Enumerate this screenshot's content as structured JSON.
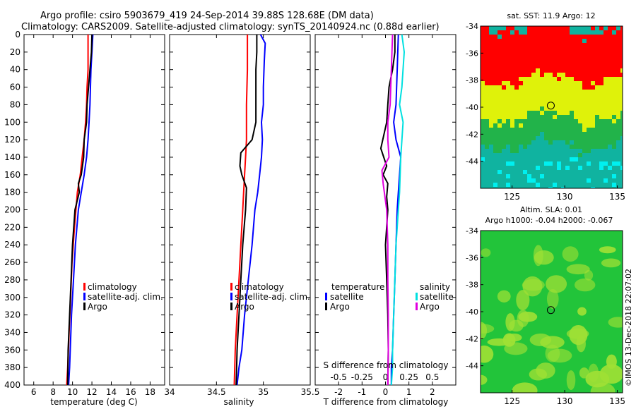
{
  "title": {
    "line1": "Argo profile: csiro 5903679_419 24-Sep-2014 39.88S 128.68E (DM data)",
    "line2": "Climatology: CARS2009. Satellite-adjusted climatology: synTS_20140924.nc (0.88d earlier)"
  },
  "credit": "©IMOS 13-Dec-2018 22:07:02",
  "colors": {
    "climatology": "#ff0000",
    "satellite": "#0000ff",
    "argo": "#000000",
    "t_sat_diff": "#0000ff",
    "s_sat_diff": "#00e0e0",
    "s_argo_diff": "#e000e0",
    "sst_red": "#ff0000",
    "sst_yellow": "#dff20a",
    "sst_green": "#22b34a",
    "sst_teal": "#10b3a0",
    "sst_cyan": "#00f0f0",
    "sla_green": "#22c43a",
    "sla_light": "#9fe035"
  },
  "chart_data": [
    {
      "type": "line",
      "id": "temperature",
      "xlabel": "temperature (deg C)",
      "ylabel": "",
      "xlim": [
        5,
        19.5
      ],
      "ylim": [
        400,
        0
      ],
      "xticks": [
        "6",
        "8",
        "10",
        "12",
        "14",
        "16",
        "18"
      ],
      "xtick_values": [
        6,
        8,
        10,
        12,
        14,
        16,
        18
      ],
      "yticks": [
        "0",
        "20",
        "40",
        "60",
        "80",
        "100",
        "120",
        "140",
        "160",
        "180",
        "200",
        "220",
        "240",
        "260",
        "280",
        "300",
        "320",
        "340",
        "360",
        "380",
        "400"
      ],
      "ytick_values": [
        0,
        20,
        40,
        60,
        80,
        100,
        120,
        140,
        160,
        180,
        200,
        220,
        240,
        260,
        280,
        300,
        320,
        340,
        360,
        380,
        400
      ],
      "legend": [
        "climatology",
        "satellite-adj. clim.",
        "Argo"
      ],
      "series": [
        {
          "name": "climatology",
          "color_key": "climatology",
          "x": [
            11.6,
            11.6,
            11.5,
            11.45,
            11.35,
            11.2,
            11.0,
            10.8,
            10.5,
            10.2,
            9.95,
            9.8,
            9.65,
            9.5,
            9.4
          ],
          "y": [
            0,
            40,
            60,
            80,
            100,
            120,
            140,
            160,
            180,
            220,
            260,
            300,
            340,
            380,
            400
          ]
        },
        {
          "name": "satellite-adj. clim.",
          "color_key": "satellite",
          "x": [
            12.1,
            12.0,
            11.9,
            11.85,
            11.8,
            11.7,
            11.6,
            11.45,
            11.2,
            10.9,
            10.6,
            10.3,
            10.1,
            9.9,
            9.7,
            9.6
          ],
          "y": [
            0,
            20,
            40,
            60,
            80,
            100,
            120,
            140,
            160,
            180,
            200,
            240,
            280,
            320,
            380,
            400
          ]
        },
        {
          "name": "Argo",
          "color_key": "argo",
          "x": [
            12.0,
            11.95,
            11.8,
            11.65,
            11.5,
            11.45,
            11.2,
            11.15,
            10.9,
            10.6,
            10.7,
            10.25,
            10.0,
            9.85,
            9.7,
            9.55,
            9.5
          ],
          "y": [
            0,
            20,
            40,
            60,
            80,
            100,
            120,
            140,
            160,
            170,
            180,
            200,
            240,
            280,
            320,
            360,
            400
          ]
        }
      ]
    },
    {
      "type": "line",
      "id": "salinity",
      "xlabel": "salinity",
      "xlim": [
        34,
        35.5
      ],
      "ylim": [
        400,
        0
      ],
      "xticks": [
        "34",
        "34.5",
        "35",
        "35.5"
      ],
      "xtick_values": [
        34,
        34.5,
        35,
        35.5
      ],
      "legend": [
        "climatology",
        "satellite-adj. clim.",
        "Argo"
      ],
      "series": [
        {
          "name": "climatology",
          "color_key": "climatology",
          "x": [
            34.83,
            34.83,
            34.82,
            34.82,
            34.81,
            34.8,
            34.79,
            34.78,
            34.76,
            34.74,
            34.72,
            34.7,
            34.69
          ],
          "y": [
            0,
            40,
            80,
            120,
            140,
            160,
            180,
            200,
            240,
            280,
            320,
            360,
            400
          ]
        },
        {
          "name": "satellite-adj. clim.",
          "color_key": "satellite",
          "x": [
            34.97,
            35.02,
            35.01,
            35.0,
            35.0,
            34.98,
            34.99,
            34.98,
            34.96,
            34.94,
            34.91,
            34.88,
            34.84,
            34.8,
            34.77,
            34.74,
            34.72
          ],
          "y": [
            0,
            10,
            30,
            60,
            80,
            100,
            120,
            140,
            160,
            180,
            200,
            240,
            280,
            320,
            360,
            380,
            400
          ]
        },
        {
          "name": "Argo",
          "color_key": "argo",
          "x": [
            34.93,
            34.93,
            34.92,
            34.92,
            34.92,
            34.92,
            34.88,
            34.76,
            34.75,
            34.77,
            34.82,
            34.81,
            34.78,
            34.76,
            34.74,
            34.72,
            34.71
          ],
          "y": [
            0,
            20,
            40,
            60,
            80,
            100,
            120,
            135,
            150,
            160,
            175,
            200,
            240,
            280,
            320,
            360,
            400
          ]
        }
      ]
    },
    {
      "type": "line",
      "id": "difference",
      "xlabel": "T difference from climatology",
      "top_xlabel": "S difference from climatology",
      "xlim": [
        -3,
        3
      ],
      "ylim": [
        400,
        0
      ],
      "xticks": [
        "-2",
        "-1",
        "0",
        "1",
        "2"
      ],
      "xtick_values": [
        -2,
        -1,
        0,
        1,
        2
      ],
      "sxticks": [
        "-0.5",
        "-0.25",
        "0",
        "0.25",
        "0.5"
      ],
      "sxtick_values": [
        -2,
        -1,
        0,
        1,
        2
      ],
      "legend_temperature_title": "temperature",
      "legend_salinity_title": "salinity",
      "legend_temperature": [
        "satellite",
        "Argo"
      ],
      "legend_salinity": [
        "satellite",
        "Argo"
      ],
      "series": [
        {
          "name": "T satellite",
          "color_key": "t_sat_diff",
          "x": [
            0.55,
            0.5,
            0.45,
            0.35,
            0.45,
            0.65,
            0.6,
            0.55,
            0.5,
            0.45,
            0.4,
            0.35,
            0.3,
            0.25,
            0.25
          ],
          "y": [
            0,
            40,
            80,
            100,
            120,
            140,
            160,
            180,
            200,
            240,
            280,
            320,
            360,
            380,
            400
          ]
        },
        {
          "name": "S satellite",
          "color_key": "s_sat_diff",
          "x": [
            0.7,
            0.8,
            0.7,
            0.6,
            0.75,
            0.65,
            0.6,
            0.55,
            0.45,
            0.4,
            0.35,
            0.3,
            0.3,
            0.25
          ],
          "y": [
            0,
            20,
            60,
            80,
            100,
            140,
            180,
            200,
            240,
            280,
            320,
            360,
            380,
            400
          ]
        },
        {
          "name": "T Argo",
          "color_key": "argo",
          "x": [
            0.4,
            0.4,
            0.3,
            0.15,
            0.1,
            0.05,
            -0.2,
            0.05,
            -0.1,
            0.1,
            0.05,
            0.1,
            0.0,
            0.05,
            0.1,
            0.12,
            0.1
          ],
          "y": [
            0,
            20,
            40,
            60,
            80,
            100,
            130,
            150,
            160,
            170,
            185,
            200,
            240,
            280,
            320,
            360,
            400
          ]
        },
        {
          "name": "S Argo",
          "color_key": "s_argo_diff",
          "x": [
            0.3,
            0.25,
            0.2,
            0.1,
            0.1,
            0.15,
            -0.15,
            -0.1,
            0.05,
            0.1,
            0.1,
            0.12,
            0.12,
            0.1
          ],
          "y": [
            0,
            40,
            80,
            100,
            120,
            140,
            155,
            170,
            200,
            240,
            280,
            320,
            360,
            400
          ]
        }
      ]
    },
    {
      "type": "heatmap",
      "id": "sst_map",
      "title": "sat. SST: 11.9 Argo: 12",
      "xlim": [
        122,
        135.5
      ],
      "ylim": [
        -46,
        -34
      ],
      "xticks": [
        "125",
        "130",
        "135"
      ],
      "xtick_values": [
        125,
        130,
        135
      ],
      "yticks": [
        "-34",
        "-36",
        "-38",
        "-40",
        "-42",
        "-44"
      ],
      "ytick_values": [
        -34,
        -36,
        -38,
        -40,
        -42,
        -44
      ],
      "bands": [
        {
          "from": -34,
          "to": -37.8,
          "color_key": "sst_red"
        },
        {
          "from": -37.8,
          "to": -40.6,
          "color_key": "sst_yellow"
        },
        {
          "from": -40.6,
          "to": -42.6,
          "color_key": "sst_green"
        },
        {
          "from": -42.6,
          "to": -46,
          "color_key": "sst_teal"
        }
      ],
      "argo_position": {
        "lon": 128.68,
        "lat": -39.88
      }
    },
    {
      "type": "heatmap",
      "id": "sla_map",
      "title": "Altim. SLA: 0.01",
      "subtitle": "Argo h1000: -0.04 h2000: -0.067",
      "xlim": [
        122,
        135.5
      ],
      "ylim": [
        -46,
        -34
      ],
      "xticks": [
        "125",
        "130",
        "135"
      ],
      "xtick_values": [
        125,
        130,
        135
      ],
      "yticks": [
        "-34",
        "-36",
        "-38",
        "-40",
        "-42",
        "-44"
      ],
      "ytick_values": [
        -34,
        -36,
        -38,
        -40,
        -42,
        -44
      ],
      "argo_position": {
        "lon": 128.68,
        "lat": -39.88
      }
    }
  ]
}
